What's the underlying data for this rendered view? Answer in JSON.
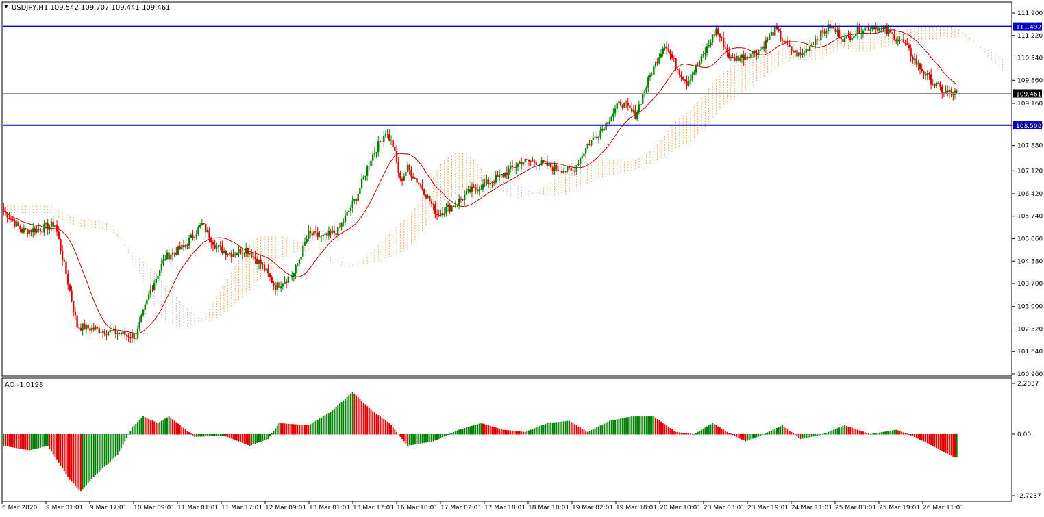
{
  "header": {
    "symbol_line": "USDJPY,H1  109.542 109.707 109.441 109.461",
    "arrow_icon": "triangle-down-icon"
  },
  "ao_header": "AO -1.0198",
  "colors": {
    "bull_candle": "#008000",
    "bear_candle": "#e00000",
    "ma_line": "#c00000",
    "level_line": "#0000cc",
    "cloud_bull": "#f5a35a",
    "cloud_bear": "#c8b4e0",
    "ao_up": "#008000",
    "ao_down": "#e00000",
    "price_tag_bg": "#000000"
  },
  "chart_data": [
    {
      "type": "candlestick",
      "symbol": "USDJPY",
      "timeframe": "H1",
      "ylim": [
        10.96,
        112.0
      ],
      "price_axis_ticks": [
        "111.900",
        "111.220",
        "110.540",
        "109.860",
        "109.160",
        "108.500",
        "107.880",
        "107.120",
        "106.420",
        "105.740",
        "105.060",
        "104.380",
        "103.700",
        "103.000",
        "102.320",
        "101.640",
        "100.960"
      ],
      "time_axis_labels": [
        "6 Mar 2020",
        "9 Mar 01:01",
        "9 Mar 17:01",
        "10 Mar 09:01",
        "11 Mar 01:01",
        "11 Mar 17:01",
        "12 Mar 09:01",
        "13 Mar 01:01",
        "13 Mar 17:01",
        "16 Mar 10:01",
        "17 Mar 02:01",
        "17 Mar 18:01",
        "18 Mar 10:01",
        "19 Mar 02:01",
        "19 Mar 18:01",
        "20 Mar 10:01",
        "23 Mar 03:01",
        "23 Mar 19:01",
        "24 Mar 11:01",
        "25 Mar 03:01",
        "25 Mar 19:01",
        "26 Mar 11:01"
      ],
      "horizontal_levels": [
        {
          "value": 111.492,
          "label": "111.492"
        },
        {
          "value": 108.5,
          "label": "108.500"
        }
      ],
      "current_price": {
        "value": 109.461,
        "label": "109.461"
      },
      "close_path": [
        [
          0,
          105.9
        ],
        [
          10,
          105.3
        ],
        [
          20,
          105.35
        ],
        [
          28,
          105.5
        ],
        [
          34,
          104.0
        ],
        [
          40,
          102.4
        ],
        [
          52,
          102.3
        ],
        [
          62,
          102.2
        ],
        [
          72,
          102.1
        ],
        [
          80,
          103.5
        ],
        [
          88,
          104.5
        ],
        [
          98,
          104.8
        ],
        [
          108,
          105.5
        ],
        [
          116,
          104.8
        ],
        [
          124,
          104.6
        ],
        [
          132,
          104.75
        ],
        [
          140,
          104.3
        ],
        [
          148,
          103.6
        ],
        [
          158,
          104.0
        ],
        [
          166,
          105.2
        ],
        [
          174,
          105.1
        ],
        [
          182,
          105.3
        ],
        [
          192,
          106.3
        ],
        [
          200,
          107.5
        ],
        [
          208,
          108.3
        ],
        [
          212,
          107.9
        ],
        [
          216,
          106.8
        ],
        [
          220,
          107.2
        ],
        [
          228,
          106.6
        ],
        [
          236,
          105.8
        ],
        [
          246,
          106.1
        ],
        [
          254,
          106.5
        ],
        [
          262,
          106.7
        ],
        [
          272,
          107.0
        ],
        [
          282,
          107.4
        ],
        [
          290,
          107.4
        ],
        [
          300,
          107.2
        ],
        [
          310,
          107.1
        ],
        [
          318,
          107.9
        ],
        [
          326,
          108.4
        ],
        [
          336,
          109.2
        ],
        [
          344,
          108.8
        ],
        [
          352,
          110.0
        ],
        [
          360,
          111.0
        ],
        [
          366,
          110.3
        ],
        [
          372,
          109.8
        ],
        [
          380,
          110.5
        ],
        [
          388,
          111.4
        ],
        [
          396,
          110.5
        ],
        [
          404,
          110.6
        ],
        [
          412,
          110.8
        ],
        [
          420,
          111.4
        ],
        [
          428,
          110.8
        ],
        [
          434,
          110.6
        ],
        [
          442,
          111.1
        ],
        [
          450,
          111.5
        ],
        [
          458,
          111.1
        ],
        [
          466,
          111.4
        ],
        [
          474,
          111.5
        ],
        [
          482,
          111.3
        ],
        [
          490,
          111.0
        ],
        [
          498,
          110.3
        ],
        [
          506,
          109.8
        ],
        [
          512,
          109.5
        ],
        [
          518,
          109.461
        ]
      ],
      "total_bars": 520
    },
    {
      "type": "bar",
      "title": "AO -1.0198",
      "ylim": [
        -2.7237,
        2.2837
      ],
      "ticks": [
        "2.2837",
        "0.00",
        "-2.7237"
      ],
      "path": [
        [
          0,
          -0.5
        ],
        [
          14,
          -0.7
        ],
        [
          24,
          -0.5
        ],
        [
          36,
          -2.0
        ],
        [
          42,
          -2.5
        ],
        [
          50,
          -1.8
        ],
        [
          62,
          -0.9
        ],
        [
          70,
          0.3
        ],
        [
          76,
          0.8
        ],
        [
          84,
          0.5
        ],
        [
          90,
          0.8
        ],
        [
          104,
          -0.1
        ],
        [
          120,
          -0.05
        ],
        [
          134,
          -0.5
        ],
        [
          144,
          -0.2
        ],
        [
          150,
          0.5
        ],
        [
          166,
          0.4
        ],
        [
          178,
          1.0
        ],
        [
          190,
          1.9
        ],
        [
          200,
          1.1
        ],
        [
          210,
          0.5
        ],
        [
          220,
          -0.5
        ],
        [
          234,
          -0.3
        ],
        [
          248,
          0.2
        ],
        [
          260,
          0.5
        ],
        [
          272,
          0.2
        ],
        [
          284,
          0.1
        ],
        [
          296,
          0.5
        ],
        [
          308,
          0.6
        ],
        [
          318,
          0.1
        ],
        [
          330,
          0.6
        ],
        [
          342,
          0.8
        ],
        [
          354,
          0.8
        ],
        [
          366,
          0.1
        ],
        [
          376,
          0.0
        ],
        [
          386,
          0.5
        ],
        [
          394,
          0.1
        ],
        [
          404,
          -0.3
        ],
        [
          414,
          0.0
        ],
        [
          424,
          0.4
        ],
        [
          434,
          -0.2
        ],
        [
          446,
          0.0
        ],
        [
          458,
          0.4
        ],
        [
          472,
          0.0
        ],
        [
          486,
          0.2
        ],
        [
          496,
          -0.1
        ],
        [
          508,
          -0.6
        ],
        [
          518,
          -1.02
        ]
      ]
    }
  ]
}
